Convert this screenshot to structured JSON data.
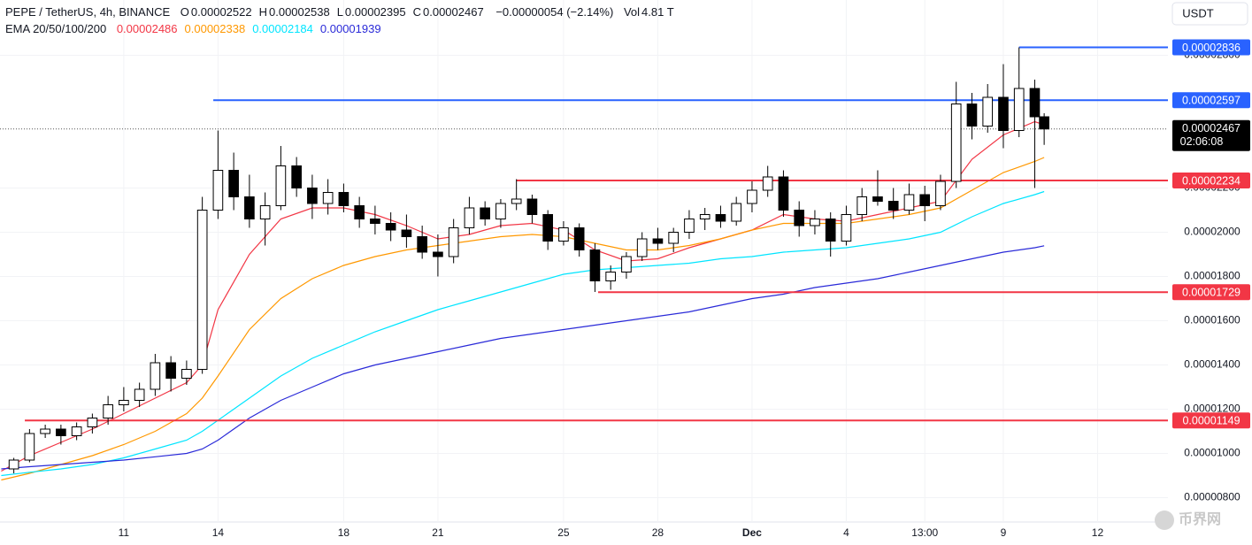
{
  "chart_data": {
    "type": "candlestick",
    "header": {
      "symbol": "PEPE / TetherUS, 4h, BINANCE",
      "ohlc": [
        {
          "label": "O",
          "value": "0.00002522"
        },
        {
          "label": "H",
          "value": "0.00002538"
        },
        {
          "label": "L",
          "value": "0.00002395"
        },
        {
          "label": "C",
          "value": "0.00002467"
        }
      ],
      "change": "−0.00000054 (−2.14%)",
      "volume_label": "Vol",
      "volume": "4.81 T"
    },
    "currency": "USDT",
    "watermark": "币界网",
    "up_color": "#ffffff",
    "down_color": "#000000",
    "grid": true,
    "xlim": [
      7.06,
      44.24
    ],
    "ylim": [
      6.9e-06,
      3.05e-05
    ],
    "xticks": [
      11,
      14,
      18,
      21,
      25,
      28,
      {
        "value": 31,
        "label": "Dec"
      },
      {
        "value": 34,
        "label": "4"
      },
      {
        "value": 36.5,
        "label": "13:00"
      },
      {
        "value": 39,
        "label": "9"
      },
      {
        "value": 42,
        "label": "12"
      }
    ],
    "yticks": [
      {
        "value": 2.8e-05,
        "label": "0.00002800"
      },
      {
        "value": 2.2e-05,
        "label": "0.00002200"
      },
      {
        "value": 2e-05,
        "label": "0.00002000"
      },
      {
        "value": 1.8e-05,
        "label": "0.00001800"
      },
      {
        "value": 1.6e-05,
        "label": "0.00001600"
      },
      {
        "value": 1.4e-05,
        "label": "0.00001400"
      },
      {
        "value": 1.2e-05,
        "label": "0.00001200"
      },
      {
        "value": 1e-05,
        "label": "0.00001000"
      },
      {
        "value": 8e-06,
        "label": "0.00000800"
      }
    ],
    "candles": {
      "x": [
        7.5,
        8,
        8.5,
        9,
        9.5,
        10,
        10.5,
        11,
        11.5,
        12,
        12.5,
        13,
        13.5,
        14,
        14.5,
        15,
        15.5,
        16,
        16.5,
        17,
        17.5,
        18,
        18.5,
        19,
        19.5,
        20,
        20.5,
        21,
        21.5,
        22,
        22.5,
        23,
        23.5,
        24,
        24.5,
        25,
        25.5,
        26,
        26.5,
        27,
        27.5,
        28,
        28.5,
        29,
        29.5,
        30,
        30.5,
        31,
        31.5,
        32,
        32.5,
        33,
        33.5,
        34,
        34.5,
        35,
        35.5,
        36,
        36.5,
        37,
        37.5,
        38,
        38.5,
        39,
        39.5,
        40,
        40.3
      ],
      "open": [
        9.3e-06,
        9.7e-06,
        1.09e-05,
        1.11e-05,
        1.08e-05,
        1.12e-05,
        1.16e-05,
        1.22e-05,
        1.24e-05,
        1.29e-05,
        1.41e-05,
        1.34e-05,
        1.38e-05,
        2.1e-05,
        2.28e-05,
        2.16e-05,
        2.06e-05,
        2.12e-05,
        2.3e-05,
        2.2e-05,
        2.13e-05,
        2.18e-05,
        2.12e-05,
        2.06e-05,
        2.04e-05,
        2.01e-05,
        1.98e-05,
        1.91e-05,
        1.89e-05,
        2.02e-05,
        2.11e-05,
        2.06e-05,
        2.13e-05,
        2.15e-05,
        2.08e-05,
        1.96e-05,
        2.02e-05,
        1.92e-05,
        1.78e-05,
        1.82e-05,
        1.89e-05,
        1.97e-05,
        1.95e-05,
        2e-05,
        2.06e-05,
        2.08e-05,
        2.05e-05,
        2.13e-05,
        2.19e-05,
        2.25e-05,
        2.1e-05,
        2.03e-05,
        2.06e-05,
        1.96e-05,
        2.08e-05,
        2.16e-05,
        2.14e-05,
        2.1e-05,
        2.17e-05,
        2.12e-05,
        2.23e-05,
        2.58e-05,
        2.48e-05,
        2.61e-05,
        2.46e-05,
        2.65e-05,
        2.522e-05
      ],
      "high": [
        9.8e-06,
        1.11e-05,
        1.13e-05,
        1.13e-05,
        1.14e-05,
        1.18e-05,
        1.26e-05,
        1.3e-05,
        1.32e-05,
        1.45e-05,
        1.44e-05,
        1.42e-05,
        2.16e-05,
        2.46e-05,
        2.36e-05,
        2.26e-05,
        2.18e-05,
        2.39e-05,
        2.34e-05,
        2.26e-05,
        2.24e-05,
        2.22e-05,
        2.16e-05,
        2.12e-05,
        2.09e-05,
        2.08e-05,
        2.03e-05,
        1.99e-05,
        2.06e-05,
        2.16e-05,
        2.14e-05,
        2.15e-05,
        2.24e-05,
        2.17e-05,
        2.1e-05,
        2.05e-05,
        2.04e-05,
        1.95e-05,
        1.85e-05,
        1.91e-05,
        2e-05,
        2.02e-05,
        2.02e-05,
        2.1e-05,
        2.11e-05,
        2.12e-05,
        2.16e-05,
        2.23e-05,
        2.3e-05,
        2.28e-05,
        2.14e-05,
        2.1e-05,
        2.09e-05,
        2.12e-05,
        2.2e-05,
        2.28e-05,
        2.2e-05,
        2.22e-05,
        2.21e-05,
        2.26e-05,
        2.68e-05,
        2.63e-05,
        2.67e-05,
        2.76e-05,
        2.836e-05,
        2.69e-05,
        2.538e-05
      ],
      "low": [
        9.1e-06,
        9.6e-06,
        1.07e-05,
        1.04e-05,
        1.06e-05,
        1.09e-05,
        1.13e-05,
        1.19e-05,
        1.21e-05,
        1.26e-05,
        1.28e-05,
        1.31e-05,
        1.36e-05,
        2.06e-05,
        2.1e-05,
        2.02e-05,
        1.94e-05,
        2.1e-05,
        2.16e-05,
        2.06e-05,
        2.08e-05,
        2.09e-05,
        2.02e-05,
        1.99e-05,
        1.96e-05,
        1.93e-05,
        1.88e-05,
        1.8e-05,
        1.86e-05,
        1.99e-05,
        2.03e-05,
        2.02e-05,
        2.1e-05,
        2.04e-05,
        1.92e-05,
        1.94e-05,
        1.89e-05,
        1.73e-05,
        1.74e-05,
        1.79e-05,
        1.87e-05,
        1.92e-05,
        1.91e-05,
        1.97e-05,
        2.01e-05,
        2.02e-05,
        2.03e-05,
        2.09e-05,
        2.16e-05,
        2.07e-05,
        1.98e-05,
        1.99e-05,
        1.89e-05,
        1.94e-05,
        2.05e-05,
        2.12e-05,
        2.06e-05,
        2.08e-05,
        2.05e-05,
        2.1e-05,
        2.2e-05,
        2.42e-05,
        2.45e-05,
        2.38e-05,
        2.43e-05,
        2.2e-05,
        2.395e-05
      ],
      "close": [
        9.7e-06,
        1.09e-05,
        1.11e-05,
        1.08e-05,
        1.12e-05,
        1.16e-05,
        1.22e-05,
        1.24e-05,
        1.29e-05,
        1.41e-05,
        1.34e-05,
        1.38e-05,
        2.1e-05,
        2.28e-05,
        2.16e-05,
        2.06e-05,
        2.12e-05,
        2.3e-05,
        2.2e-05,
        2.13e-05,
        2.18e-05,
        2.12e-05,
        2.06e-05,
        2.04e-05,
        2.01e-05,
        1.98e-05,
        1.91e-05,
        1.89e-05,
        2.02e-05,
        2.11e-05,
        2.06e-05,
        2.13e-05,
        2.15e-05,
        2.08e-05,
        1.96e-05,
        2.02e-05,
        1.92e-05,
        1.78e-05,
        1.82e-05,
        1.89e-05,
        1.97e-05,
        1.95e-05,
        2e-05,
        2.06e-05,
        2.08e-05,
        2.05e-05,
        2.13e-05,
        2.19e-05,
        2.25e-05,
        2.1e-05,
        2.03e-05,
        2.06e-05,
        1.96e-05,
        2.08e-05,
        2.16e-05,
        2.14e-05,
        2.1e-05,
        2.17e-05,
        2.12e-05,
        2.23e-05,
        2.58e-05,
        2.48e-05,
        2.61e-05,
        2.46e-05,
        2.65e-05,
        2.522e-05,
        2.467e-05
      ]
    },
    "ema": {
      "title": "EMA 20/50/100/200",
      "x": [
        7.1,
        8,
        9,
        10,
        11,
        12,
        13,
        13.5,
        14,
        15,
        16,
        17,
        18,
        19,
        20,
        21,
        22,
        23,
        24,
        25,
        26,
        27,
        28,
        29,
        30,
        31,
        32,
        33,
        34,
        35,
        36,
        37,
        38,
        39,
        40,
        40.3
      ],
      "series": [
        {
          "color": "#f23645",
          "legend_value": "0.00002486",
          "values": [
            9.2e-06,
            9.9e-06,
            1.05e-05,
            1.11e-05,
            1.18e-05,
            1.25e-05,
            1.32e-05,
            1.4e-05,
            1.65e-05,
            1.9e-05,
            2.06e-05,
            2.11e-05,
            2.11e-05,
            2.08e-05,
            2.03e-05,
            1.97e-05,
            1.99e-05,
            2.03e-05,
            2.04e-05,
            2.01e-05,
            1.92e-05,
            1.87e-05,
            1.88e-05,
            1.93e-05,
            1.97e-05,
            2.01e-05,
            2.08e-05,
            2.06e-05,
            2.05e-05,
            2.08e-05,
            2.11e-05,
            2.14e-05,
            2.33e-05,
            2.44e-05,
            2.5e-05,
            2.486e-05
          ]
        },
        {
          "color": "#ff9800",
          "legend_value": "0.00002338",
          "values": [
            8.8e-06,
            9.1e-06,
            9.5e-06,
            9.9e-06,
            1.04e-05,
            1.1e-05,
            1.18e-05,
            1.25e-05,
            1.35e-05,
            1.56e-05,
            1.7e-05,
            1.79e-05,
            1.85e-05,
            1.89e-05,
            1.92e-05,
            1.94e-05,
            1.96e-05,
            1.98e-05,
            1.99e-05,
            1.98e-05,
            1.95e-05,
            1.92e-05,
            1.92e-05,
            1.94e-05,
            1.97e-05,
            2.01e-05,
            2.04e-05,
            2.04e-05,
            2.04e-05,
            2.06e-05,
            2.08e-05,
            2.11e-05,
            2.19e-05,
            2.27e-05,
            2.32e-05,
            2.338e-05
          ]
        },
        {
          "color": "#00e5ff",
          "legend_value": "0.00002184",
          "values": [
            9e-06,
            9.15e-06,
            9.3e-06,
            9.5e-06,
            9.8e-06,
            1.02e-05,
            1.06e-05,
            1.1e-05,
            1.15e-05,
            1.25e-05,
            1.35e-05,
            1.43e-05,
            1.49e-05,
            1.55e-05,
            1.6e-05,
            1.65e-05,
            1.69e-05,
            1.73e-05,
            1.77e-05,
            1.81e-05,
            1.83e-05,
            1.84e-05,
            1.85e-05,
            1.86e-05,
            1.88e-05,
            1.89e-05,
            1.91e-05,
            1.92e-05,
            1.93e-05,
            1.95e-05,
            1.97e-05,
            2e-05,
            2.07e-05,
            2.13e-05,
            2.17e-05,
            2.184e-05
          ]
        },
        {
          "color": "#2a2ad8",
          "legend_value": "0.00001939",
          "values": [
            9.3e-06,
            9.4e-06,
            9.5e-06,
            9.6e-06,
            9.7e-06,
            9.85e-06,
            1e-05,
            1.02e-05,
            1.06e-05,
            1.16e-05,
            1.24e-05,
            1.3e-05,
            1.36e-05,
            1.4e-05,
            1.43e-05,
            1.46e-05,
            1.49e-05,
            1.52e-05,
            1.54e-05,
            1.56e-05,
            1.58e-05,
            1.6e-05,
            1.62e-05,
            1.64e-05,
            1.67e-05,
            1.7e-05,
            1.72e-05,
            1.75e-05,
            1.77e-05,
            1.79e-05,
            1.82e-05,
            1.85e-05,
            1.88e-05,
            1.91e-05,
            1.93e-05,
            1.939e-05
          ]
        }
      ]
    },
    "levels": [
      {
        "value": 2.836e-05,
        "label": "0.00002836",
        "color": "#2962ff",
        "x_start": 39.5
      },
      {
        "value": 2.597e-05,
        "label": "0.00002597",
        "color": "#2962ff",
        "x_start": 13.85
      },
      {
        "value": 2.234e-05,
        "label": "0.00002234",
        "color": "#f23645",
        "x_start": 23.5
      },
      {
        "value": 1.729e-05,
        "label": "0.00001729",
        "color": "#f23645",
        "x_start": 26.1
      },
      {
        "value": 1.149e-05,
        "label": "0.00001149",
        "color": "#f23645",
        "x_start": 7.85
      }
    ],
    "last": {
      "value": 2.467e-05,
      "label": "0.00002467",
      "countdown": "02:06:08"
    }
  }
}
